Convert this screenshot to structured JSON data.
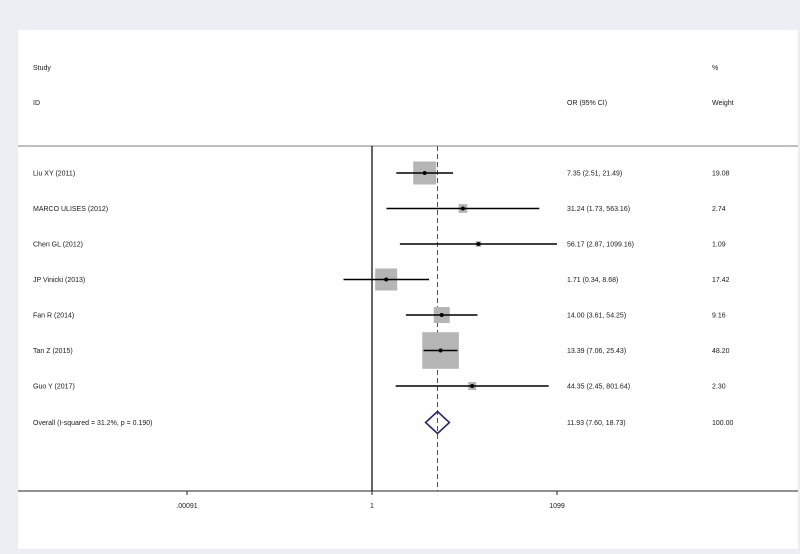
{
  "header": {
    "study_label": "Study",
    "id_label": "ID",
    "or_label": "OR (95% CI)",
    "pct_label": "%",
    "weight_label": "Weight"
  },
  "chart_data": {
    "type": "forest",
    "x_scale": "log",
    "reference_line": 1,
    "pooled_line": 11.93,
    "x_ticks": [
      {
        "value": 0.00091,
        "label": ".00091"
      },
      {
        "value": 1,
        "label": "1"
      },
      {
        "value": 1099,
        "label": "1099"
      }
    ],
    "studies": [
      {
        "id": "Liu XY (2011)",
        "or": 7.35,
        "lo": 2.51,
        "hi": 21.49,
        "ci_text": "7.35 (2.51, 21.49)",
        "weight": 19.08,
        "weight_text": "19.08"
      },
      {
        "id": "MARCO ULISES (2012)",
        "or": 31.24,
        "lo": 1.73,
        "hi": 563.16,
        "ci_text": "31.24 (1.73, 563.16)",
        "weight": 2.74,
        "weight_text": "2.74"
      },
      {
        "id": "Chen GL (2012)",
        "or": 56.17,
        "lo": 2.87,
        "hi": 1099.16,
        "ci_text": "56.17 (2.87, 1099.16)",
        "weight": 1.09,
        "weight_text": "1.09"
      },
      {
        "id": "JP Vinicki (2013)",
        "or": 1.71,
        "lo": 0.34,
        "hi": 8.68,
        "ci_text": "1.71 (0.34, 8.68)",
        "weight": 17.42,
        "weight_text": "17.42"
      },
      {
        "id": "Fan R (2014)",
        "or": 14.0,
        "lo": 3.61,
        "hi": 54.25,
        "ci_text": "14.00 (3.61, 54.25)",
        "weight": 9.16,
        "weight_text": "9.16"
      },
      {
        "id": "Tan Z (2015)",
        "or": 13.39,
        "lo": 7.06,
        "hi": 25.43,
        "ci_text": "13.39 (7.06, 25.43)",
        "weight": 48.2,
        "weight_text": "48.20"
      },
      {
        "id": "Guo Y (2017)",
        "or": 44.35,
        "lo": 2.45,
        "hi": 801.64,
        "ci_text": "44.35 (2.45, 801.64)",
        "weight": 2.3,
        "weight_text": "2.30"
      }
    ],
    "overall": {
      "id": "Overall  (I-squared = 31.2%, p = 0.190)",
      "or": 11.93,
      "lo": 7.6,
      "hi": 18.73,
      "ci_text": "11.93 (7.60, 18.73)",
      "weight_text": "100.00"
    },
    "colors": {
      "box": "#b5b5b5",
      "ci_line": "#000000",
      "ref_line": "#000000",
      "pooled_line": "#a0303a",
      "diamond": "#2a2a6a",
      "plot_bg": "#ffffff",
      "outer_bg": "#ebeef3"
    }
  }
}
